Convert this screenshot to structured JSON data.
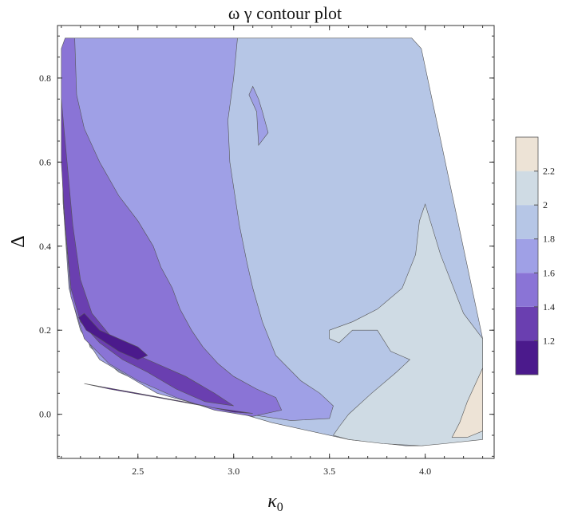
{
  "chart_data": {
    "type": "contour",
    "title": "ω γ contour plot",
    "xlabel": "κ0",
    "ylabel": "Δ",
    "xlim": [
      2.08,
      4.36
    ],
    "ylim": [
      -0.105,
      0.925
    ],
    "x_ticks": [
      2.5,
      3.0,
      3.5,
      4.0
    ],
    "y_ticks": [
      0.0,
      0.2,
      0.4,
      0.6,
      0.8
    ],
    "x_tick_labels": [
      "2.5",
      "3.0",
      "3.5",
      "4.0"
    ],
    "y_tick_labels": [
      "0.0",
      "0.2",
      "0.4",
      "0.6",
      "0.8"
    ],
    "legend": {
      "placement": "right",
      "levels": [
        {
          "low": 1.0,
          "high": 1.2,
          "color": "#4b1a8c"
        },
        {
          "low": 1.2,
          "high": 1.4,
          "color": "#6a3fb0"
        },
        {
          "low": 1.4,
          "high": 1.6,
          "color": "#8a74d6"
        },
        {
          "low": 1.6,
          "high": 1.8,
          "color": "#9fa0e6"
        },
        {
          "low": 1.8,
          "high": 2.0,
          "color": "#b6c6e6"
        },
        {
          "low": 2.0,
          "high": 2.2,
          "color": "#cfdbe4"
        },
        {
          "low": 2.2,
          "high": 2.4,
          "color": "#ede3d6"
        }
      ],
      "tick_labels": [
        "1.2",
        "1.4",
        "1.6",
        "1.8",
        "2",
        "2.2"
      ],
      "tick_values": [
        1.2,
        1.4,
        1.6,
        1.8,
        2.0,
        2.2
      ]
    },
    "regions": [
      {
        "level": "1.8-2.0",
        "color": "#b6c6e6",
        "points": [
          [
            2.13,
            0.895
          ],
          [
            3.93,
            0.895
          ],
          [
            3.98,
            0.87
          ],
          [
            4.3,
            0.18
          ],
          [
            4.3,
            -0.04
          ],
          [
            4.22,
            -0.06
          ],
          [
            3.98,
            -0.075
          ],
          [
            3.9,
            -0.075
          ],
          [
            3.6,
            -0.06
          ],
          [
            3.2,
            -0.02
          ],
          [
            2.9,
            0.02
          ],
          [
            2.6,
            0.06
          ],
          [
            2.4,
            0.1
          ],
          [
            2.25,
            0.16
          ],
          [
            2.16,
            0.3
          ],
          [
            2.11,
            0.55
          ],
          [
            2.1,
            0.75
          ],
          [
            2.11,
            0.85
          ]
        ]
      },
      {
        "level": "2.0-2.2",
        "color": "#cfdbe4",
        "points": [
          [
            3.5,
            0.2
          ],
          [
            3.62,
            0.22
          ],
          [
            3.75,
            0.25
          ],
          [
            3.88,
            0.3
          ],
          [
            3.95,
            0.38
          ],
          [
            3.97,
            0.46
          ],
          [
            4.0,
            0.5
          ],
          [
            4.08,
            0.38
          ],
          [
            4.2,
            0.24
          ],
          [
            4.3,
            0.18
          ],
          [
            4.3,
            -0.06
          ],
          [
            4.1,
            -0.07
          ],
          [
            3.98,
            -0.075
          ],
          [
            3.78,
            -0.07
          ],
          [
            3.6,
            -0.06
          ],
          [
            3.52,
            -0.05
          ],
          [
            3.55,
            -0.03
          ],
          [
            3.6,
            0.0
          ],
          [
            3.72,
            0.05
          ],
          [
            3.85,
            0.1
          ],
          [
            3.92,
            0.13
          ],
          [
            3.82,
            0.15
          ],
          [
            3.75,
            0.2
          ],
          [
            3.62,
            0.2
          ],
          [
            3.55,
            0.17
          ],
          [
            3.5,
            0.18
          ]
        ]
      },
      {
        "level": "2.2-2.4",
        "color": "#ede3d6",
        "points": [
          [
            4.14,
            -0.055
          ],
          [
            4.18,
            -0.02
          ],
          [
            4.22,
            0.03
          ],
          [
            4.27,
            0.08
          ],
          [
            4.3,
            0.11
          ],
          [
            4.3,
            -0.04
          ],
          [
            4.22,
            -0.055
          ]
        ]
      },
      {
        "level": "1.6-1.8",
        "color": "#9fa0e6",
        "points": [
          [
            2.13,
            0.895
          ],
          [
            3.02,
            0.895
          ],
          [
            3.0,
            0.8
          ],
          [
            2.97,
            0.7
          ],
          [
            2.98,
            0.6
          ],
          [
            3.03,
            0.45
          ],
          [
            3.07,
            0.36
          ],
          [
            3.1,
            0.3
          ],
          [
            3.15,
            0.22
          ],
          [
            3.22,
            0.14
          ],
          [
            3.35,
            0.08
          ],
          [
            3.45,
            0.05
          ],
          [
            3.52,
            0.02
          ],
          [
            3.5,
            -0.01
          ],
          [
            3.3,
            -0.015
          ],
          [
            3.0,
            0.005
          ],
          [
            2.8,
            0.025
          ],
          [
            2.6,
            0.05
          ],
          [
            2.45,
            0.09
          ],
          [
            2.3,
            0.13
          ],
          [
            2.2,
            0.2
          ],
          [
            2.14,
            0.3
          ],
          [
            2.11,
            0.5
          ],
          [
            2.1,
            0.7
          ],
          [
            2.11,
            0.85
          ]
        ]
      },
      {
        "level": "1.6-1.8",
        "color": "#9fa0e6",
        "points": [
          [
            3.08,
            0.76
          ],
          [
            3.12,
            0.72
          ],
          [
            3.13,
            0.64
          ],
          [
            3.18,
            0.67
          ],
          [
            3.15,
            0.72
          ],
          [
            3.13,
            0.75
          ],
          [
            3.1,
            0.78
          ]
        ]
      },
      {
        "level": "1.4-1.6",
        "color": "#8a74d6",
        "points": [
          [
            2.1,
            0.87
          ],
          [
            2.12,
            0.895
          ],
          [
            2.17,
            0.895
          ],
          [
            2.18,
            0.76
          ],
          [
            2.22,
            0.68
          ],
          [
            2.3,
            0.6
          ],
          [
            2.4,
            0.52
          ],
          [
            2.5,
            0.46
          ],
          [
            2.58,
            0.4
          ],
          [
            2.62,
            0.35
          ],
          [
            2.68,
            0.3
          ],
          [
            2.72,
            0.25
          ],
          [
            2.78,
            0.2
          ],
          [
            2.84,
            0.16
          ],
          [
            2.92,
            0.12
          ],
          [
            3.0,
            0.09
          ],
          [
            3.12,
            0.06
          ],
          [
            3.22,
            0.04
          ],
          [
            3.25,
            0.01
          ],
          [
            3.1,
            -0.005
          ],
          [
            2.9,
            0.01
          ],
          [
            2.7,
            0.04
          ],
          [
            2.5,
            0.08
          ],
          [
            2.35,
            0.12
          ],
          [
            2.22,
            0.18
          ],
          [
            2.15,
            0.28
          ],
          [
            2.11,
            0.5
          ],
          [
            2.1,
            0.7
          ]
        ]
      },
      {
        "level": "1.2-1.4",
        "color": "#6a3fb0",
        "points": [
          [
            2.1,
            0.75
          ],
          [
            2.13,
            0.6
          ],
          [
            2.16,
            0.45
          ],
          [
            2.2,
            0.32
          ],
          [
            2.26,
            0.24
          ],
          [
            2.35,
            0.19
          ],
          [
            2.45,
            0.15
          ],
          [
            2.6,
            0.12
          ],
          [
            2.75,
            0.09
          ],
          [
            2.9,
            0.05
          ],
          [
            3.0,
            0.02
          ],
          [
            2.85,
            0.03
          ],
          [
            2.7,
            0.06
          ],
          [
            2.55,
            0.1
          ],
          [
            2.42,
            0.13
          ],
          [
            2.3,
            0.17
          ],
          [
            2.2,
            0.22
          ],
          [
            2.15,
            0.3
          ],
          [
            2.12,
            0.45
          ],
          [
            2.1,
            0.6
          ]
        ]
      },
      {
        "level": "1.0-1.2",
        "color": "#4b1a8c",
        "points": [
          [
            2.19,
            0.23
          ],
          [
            2.23,
            0.2
          ],
          [
            2.3,
            0.18
          ],
          [
            2.4,
            0.15
          ],
          [
            2.5,
            0.13
          ],
          [
            2.55,
            0.14
          ],
          [
            2.5,
            0.16
          ],
          [
            2.4,
            0.18
          ],
          [
            2.3,
            0.2
          ],
          [
            2.22,
            0.24
          ]
        ]
      },
      {
        "level": "1.0-1.2",
        "color": "#4b1a8c",
        "points": [
          [
            2.22,
            0.073
          ],
          [
            2.5,
            0.05
          ],
          [
            2.8,
            0.025
          ],
          [
            3.0,
            0.005
          ],
          [
            3.1,
            0.002
          ],
          [
            2.9,
            0.015
          ],
          [
            2.6,
            0.04
          ],
          [
            2.35,
            0.06
          ]
        ]
      }
    ]
  }
}
